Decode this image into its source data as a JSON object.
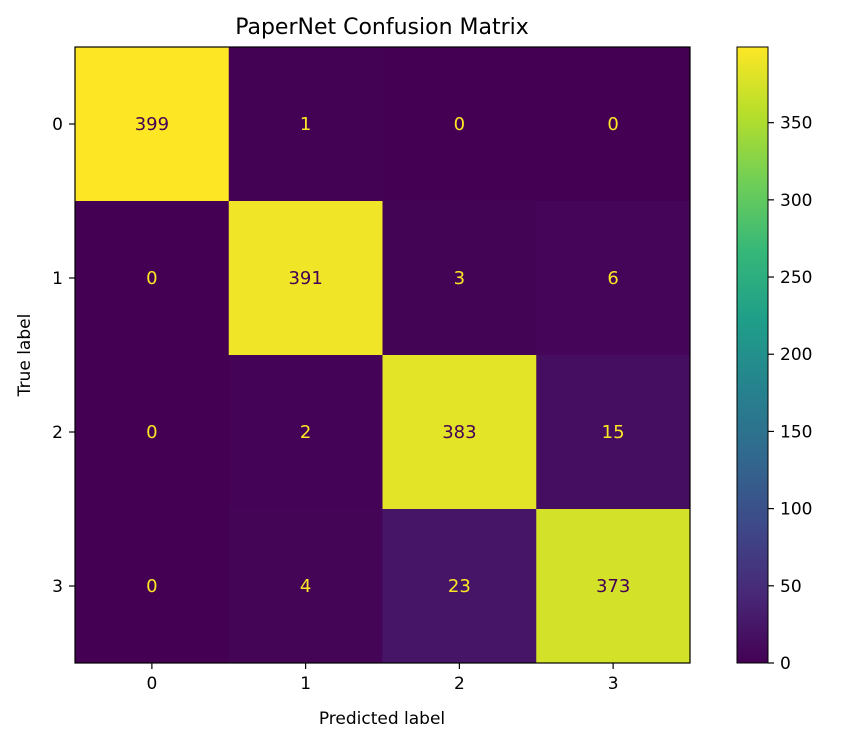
{
  "chart_data": {
    "type": "heatmap",
    "title": "PaperNet Confusion Matrix",
    "xlabel": "Predicted label",
    "ylabel": "True label",
    "x_categories": [
      "0",
      "1",
      "2",
      "3"
    ],
    "y_categories": [
      "0",
      "1",
      "2",
      "3"
    ],
    "values": [
      [
        399,
        1,
        0,
        0
      ],
      [
        0,
        391,
        3,
        6
      ],
      [
        0,
        2,
        383,
        15
      ],
      [
        0,
        4,
        23,
        373
      ]
    ],
    "colormap": "viridis",
    "colorbar": {
      "range": [
        0,
        399
      ],
      "ticks": [
        0,
        50,
        100,
        150,
        200,
        250,
        300,
        350
      ],
      "tick_labels": [
        "0",
        "50",
        "100",
        "150",
        "200",
        "250",
        "300",
        "350"
      ]
    },
    "text_colors": {
      "on_dark": "#fde725",
      "on_light": "#440154"
    }
  }
}
